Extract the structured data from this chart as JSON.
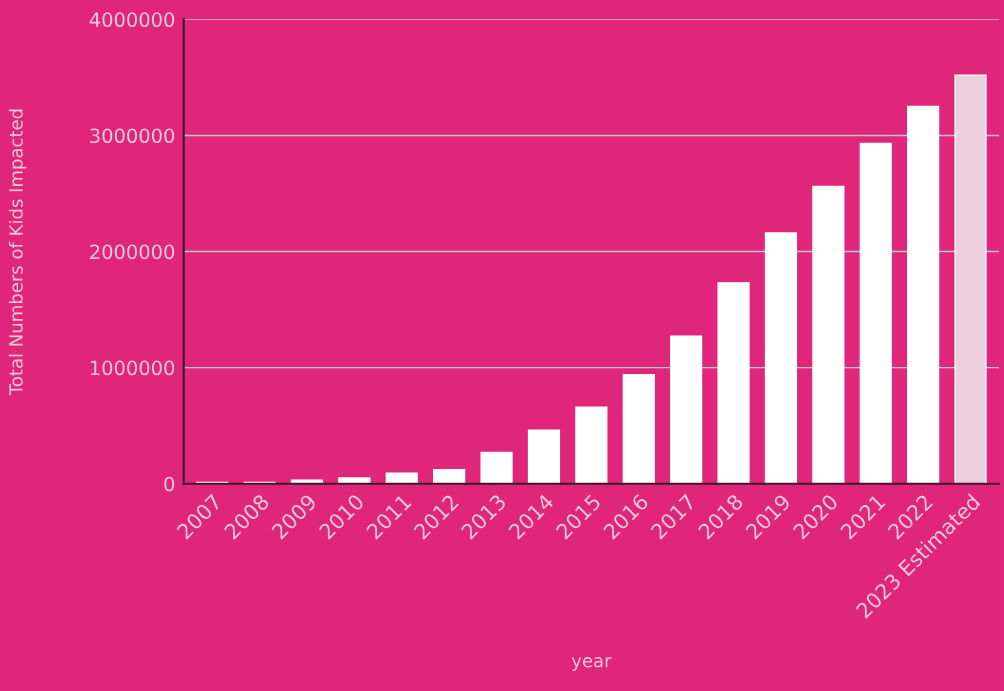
{
  "chart_data": {
    "type": "bar",
    "xlabel": "year",
    "ylabel": "Total Numbers of Kids Impacted",
    "categories": [
      "2007",
      "2008",
      "2009",
      "2010",
      "2011",
      "2012",
      "2013",
      "2014",
      "2015",
      "2016",
      "2017",
      "2018",
      "2019",
      "2020",
      "2021",
      "2022",
      "2023 Estimated"
    ],
    "values": [
      10000,
      10000,
      30000,
      50000,
      90000,
      120000,
      270000,
      460000,
      660000,
      940000,
      1270000,
      1730000,
      2160000,
      2560000,
      2930000,
      3250000,
      3520000
    ],
    "colors": [
      "#ffffff",
      "#ffffff",
      "#ffffff",
      "#ffffff",
      "#ffffff",
      "#ffffff",
      "#ffffff",
      "#ffffff",
      "#ffffff",
      "#ffffff",
      "#ffffff",
      "#ffffff",
      "#ffffff",
      "#ffffff",
      "#ffffff",
      "#ffffff",
      "#eccfdd"
    ],
    "ylim": [
      0,
      4000000
    ],
    "yticks": [
      0,
      1000000,
      2000000,
      3000000,
      4000000
    ],
    "grid": "y"
  }
}
